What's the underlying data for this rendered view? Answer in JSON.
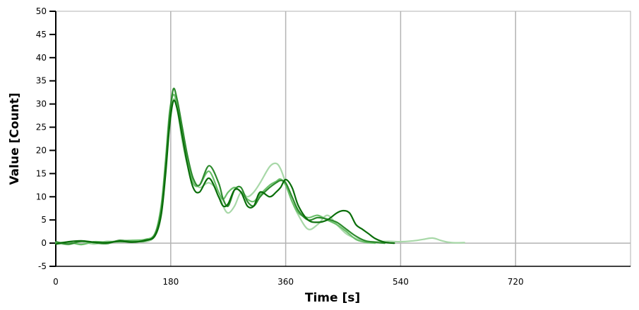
{
  "chart_data": {
    "type": "line",
    "title": "",
    "xlabel": "Time [s]",
    "ylabel": "Value [Count]",
    "xlim": [
      0,
      900
    ],
    "ylim": [
      -5,
      50
    ],
    "x_ticks": [
      0,
      180,
      360,
      540,
      720
    ],
    "y_ticks": [
      -5,
      0,
      5,
      10,
      15,
      20,
      25,
      30,
      35,
      40,
      45,
      50
    ],
    "grid": "vertical",
    "series": [
      {
        "color": "#a8d8a8",
        "x": [
          0,
          20,
          40,
          60,
          80,
          100,
          120,
          140,
          155,
          165,
          172,
          178,
          184,
          190,
          198,
          206,
          215,
          225,
          240,
          255,
          262,
          270,
          280,
          290,
          300,
          310,
          320,
          335,
          345,
          352,
          360,
          370,
          380,
          395,
          410,
          425,
          440,
          455,
          470,
          485,
          500,
          520,
          540,
          560,
          575,
          590,
          605,
          620,
          640
        ],
        "y": [
          0,
          -0.3,
          0.3,
          -0.2,
          0.4,
          0.2,
          0.5,
          0.3,
          1.5,
          6,
          16,
          26,
          31,
          29,
          22,
          17,
          14,
          12,
          13,
          11,
          8,
          6.5,
          8,
          11,
          10,
          11,
          13,
          16.5,
          17.2,
          16,
          13,
          9,
          6,
          3,
          4,
          6,
          4,
          2,
          1,
          0.4,
          0.3,
          0.4,
          0.3,
          0.5,
          0.8,
          1.1,
          0.5,
          0.1,
          0.1
        ]
      },
      {
        "color": "#6abf6a",
        "x": [
          0,
          20,
          40,
          60,
          80,
          100,
          120,
          140,
          155,
          165,
          172,
          178,
          184,
          190,
          198,
          206,
          215,
          225,
          240,
          255,
          262,
          270,
          280,
          290,
          300,
          310,
          320,
          335,
          345,
          352,
          360,
          370,
          380,
          395,
          410,
          425,
          440,
          455,
          470,
          485,
          500
        ],
        "y": [
          0,
          0.2,
          -0.3,
          0.3,
          0.2,
          0.5,
          0.6,
          0.8,
          2,
          8,
          18,
          28,
          32,
          30,
          24,
          18,
          13,
          12.5,
          15.5,
          11,
          9.5,
          11,
          12,
          11,
          9.5,
          9,
          10.5,
          12.5,
          13.3,
          13.8,
          12.5,
          9,
          6.5,
          5.5,
          6,
          5,
          4,
          2.5,
          0.8,
          0.2,
          0
        ]
      },
      {
        "color": "#2e8b2e",
        "x": [
          0,
          20,
          40,
          60,
          80,
          100,
          120,
          140,
          155,
          165,
          172,
          178,
          184,
          190,
          198,
          206,
          215,
          225,
          240,
          255,
          262,
          270,
          280,
          290,
          300,
          310,
          320,
          335,
          345,
          352,
          360,
          370,
          380,
          395,
          410,
          425,
          440,
          455,
          470,
          485,
          500,
          515
        ],
        "y": [
          0.3,
          -0.2,
          0.4,
          0.1,
          -0.1,
          0.6,
          0.3,
          0.5,
          1.8,
          7,
          17,
          27,
          33.2,
          31,
          25,
          19,
          14,
          12.5,
          16.7,
          13,
          9.5,
          8,
          11.5,
          12,
          9,
          8,
          10,
          12,
          13,
          13.5,
          13,
          10,
          7,
          5,
          5.5,
          5.2,
          4.5,
          3,
          1.5,
          0.5,
          0.2,
          0
        ]
      },
      {
        "color": "#0a6e0a",
        "x": [
          0,
          20,
          40,
          60,
          80,
          100,
          120,
          140,
          155,
          165,
          172,
          178,
          184,
          190,
          198,
          206,
          215,
          225,
          240,
          255,
          262,
          270,
          280,
          290,
          300,
          310,
          320,
          335,
          345,
          352,
          360,
          370,
          380,
          395,
          410,
          425,
          440,
          450,
          460,
          470,
          480,
          490,
          500,
          515,
          530
        ],
        "y": [
          -0.2,
          0.3,
          0.5,
          0.2,
          0.1,
          0.4,
          0.2,
          0.6,
          1.5,
          6,
          15,
          25,
          30.6,
          29,
          23,
          17,
          12,
          11,
          14,
          10,
          8,
          8.5,
          11.5,
          11,
          8,
          8,
          11,
          10,
          11,
          12,
          13.7,
          12,
          8,
          5,
          4.5,
          5,
          6.5,
          7,
          6.5,
          4,
          3,
          2,
          1,
          0.2,
          0
        ]
      }
    ]
  }
}
